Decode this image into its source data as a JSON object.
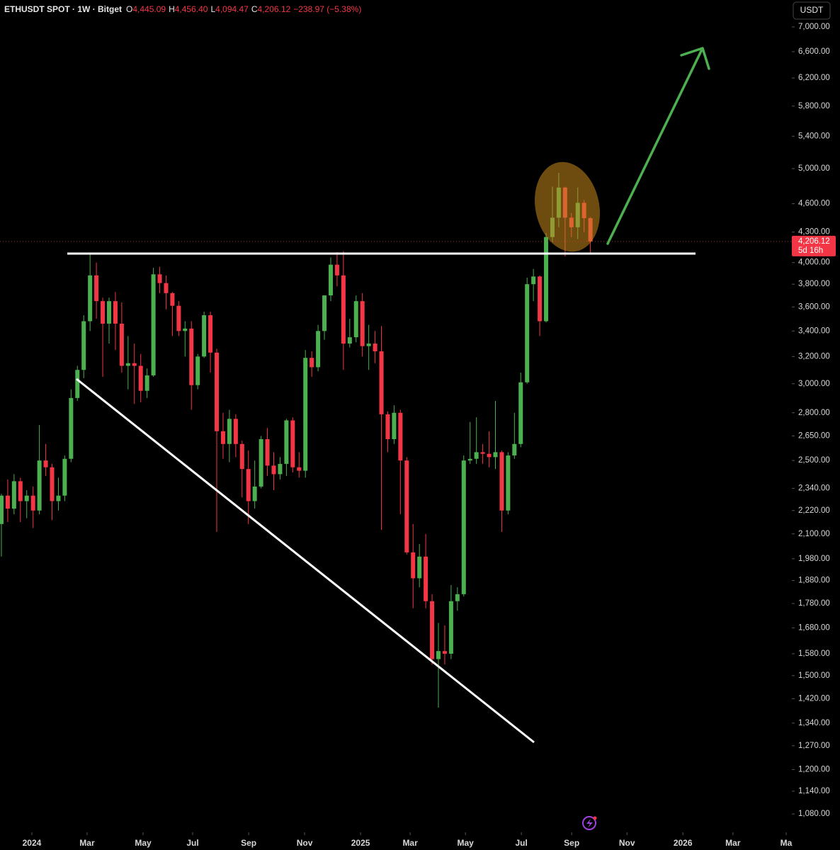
{
  "chart_data": {
    "type": "candlestick",
    "header": {
      "symbol": "ETHUSDT SPOT · 1W · Bitget",
      "ohlc": [
        {
          "prefix": "O",
          "label": "4,445.09"
        },
        {
          "prefix": "H",
          "label": "4,456.40"
        },
        {
          "prefix": "L",
          "label": "4,094.47"
        },
        {
          "prefix": "C",
          "label": "4,206.12"
        }
      ],
      "change": "−238.97 (−5.38%)"
    },
    "currency": "USDT",
    "last_price_label": "4,206.12",
    "countdown": "5d 16h",
    "up_color": "#4caf50",
    "down_color": "#f23645",
    "log_scale": true,
    "grid": false,
    "open": [
      2150,
      2300,
      2230,
      2380,
      2270,
      2300,
      2220,
      2500,
      2460,
      2270,
      2300,
      2510,
      2900,
      3100,
      3480,
      3880,
      3650,
      3460,
      3650,
      3460,
      3130,
      3150,
      3130,
      2950,
      3060,
      3890,
      3810,
      3720,
      3610,
      3400,
      3420,
      2990,
      3200,
      3530,
      3230,
      2680,
      2600,
      2760,
      2600,
      2450,
      2270,
      2350,
      2630,
      2470,
      2420,
      2480,
      2750,
      2460,
      2440,
      3190,
      3120,
      3400,
      3700,
      3980,
      3880,
      3300,
      3350,
      3650,
      3280,
      3300,
      3240,
      2790,
      2630,
      2800,
      2500,
      2010,
      1890,
      1990,
      1790,
      1560,
      1590,
      1580,
      1790,
      1820,
      2500,
      2510,
      2550,
      2540,
      2520,
      2550,
      2220,
      2530,
      2600,
      3010,
      3800,
      3870,
      3480,
      4250,
      4450,
      4780,
      4450,
      4350,
      4610,
      4445.09
    ],
    "high": [
      2310,
      2390,
      2420,
      2400,
      2330,
      2350,
      2720,
      2600,
      2480,
      2400,
      2530,
      2960,
      3130,
      3530,
      4090,
      4000,
      3680,
      3680,
      3730,
      3640,
      3360,
      3300,
      3220,
      3110,
      3950,
      3960,
      3880,
      3730,
      3650,
      3480,
      3480,
      3220,
      3560,
      3560,
      3260,
      2800,
      2820,
      2790,
      2620,
      2560,
      2500,
      2650,
      2700,
      2550,
      2520,
      2760,
      2770,
      2550,
      3250,
      3240,
      3450,
      3700,
      4050,
      4100,
      4110,
      3500,
      3700,
      3720,
      3450,
      3400,
      3440,
      2810,
      2850,
      2820,
      2520,
      2150,
      2050,
      2100,
      1820,
      1700,
      1690,
      1860,
      1850,
      2530,
      2740,
      2770,
      2600,
      2680,
      2880,
      2560,
      2550,
      2800,
      3080,
      3860,
      3940,
      3880,
      4290,
      4790,
      4950,
      4790,
      4500,
      4780,
      4640,
      4456.4
    ],
    "low": [
      1990,
      2160,
      2200,
      2160,
      2180,
      2130,
      2200,
      2410,
      2170,
      2220,
      2270,
      2490,
      2880,
      3040,
      3400,
      3500,
      3050,
      3300,
      3250,
      3080,
      2960,
      2860,
      2870,
      2900,
      3050,
      3720,
      3580,
      3360,
      3360,
      3200,
      2820,
      2960,
      3190,
      3080,
      2110,
      2510,
      2490,
      2520,
      2290,
      2150,
      2230,
      2340,
      2410,
      2330,
      2390,
      2410,
      2430,
      2400,
      2400,
      3050,
      3090,
      3330,
      3650,
      3780,
      3100,
      3270,
      3310,
      3200,
      3100,
      3150,
      2120,
      2550,
      2600,
      2200,
      2000,
      1760,
      1850,
      1760,
      1540,
      1390,
      1540,
      1560,
      1750,
      1810,
      2480,
      2480,
      2480,
      2460,
      2450,
      2110,
      2200,
      2510,
      2580,
      3000,
      3650,
      3360,
      3470,
      4200,
      4350,
      4060,
      4250,
      4230,
      4300,
      4094.47
    ],
    "close": [
      2300,
      2230,
      2380,
      2270,
      2300,
      2220,
      2500,
      2460,
      2270,
      2300,
      2510,
      2900,
      3100,
      3480,
      3880,
      3650,
      3460,
      3650,
      3460,
      3130,
      3150,
      3130,
      2950,
      3060,
      3890,
      3810,
      3720,
      3610,
      3400,
      3420,
      2990,
      3200,
      3530,
      3230,
      2680,
      2600,
      2760,
      2600,
      2450,
      2270,
      2350,
      2630,
      2470,
      2420,
      2480,
      2750,
      2460,
      2440,
      3190,
      3120,
      3400,
      3700,
      3980,
      3880,
      3300,
      3350,
      3650,
      3280,
      3300,
      3240,
      2790,
      2630,
      2800,
      2500,
      2010,
      1890,
      1990,
      1790,
      1560,
      1590,
      1580,
      1790,
      1820,
      2500,
      2510,
      2550,
      2540,
      2520,
      2550,
      2220,
      2530,
      2600,
      3010,
      3800,
      3870,
      3480,
      4250,
      4450,
      4780,
      4450,
      4350,
      4610,
      4445.09,
      4206.12
    ],
    "xlim": [
      -0.22,
      124.8
    ],
    "xticks": [
      {
        "value": 4.81,
        "label": "2024"
      },
      {
        "value": 13.53,
        "label": "Mar"
      },
      {
        "value": 22.37,
        "label": "May"
      },
      {
        "value": 30.2,
        "label": "Jul"
      },
      {
        "value": 39.04,
        "label": "Sep"
      },
      {
        "value": 47.87,
        "label": "Nov"
      },
      {
        "value": 56.71,
        "label": "2025"
      },
      {
        "value": 64.54,
        "label": "Mar"
      },
      {
        "value": 73.27,
        "label": "May"
      },
      {
        "value": 82.1,
        "label": "Jul"
      },
      {
        "value": 90.04,
        "label": "Sep"
      },
      {
        "value": 98.77,
        "label": "Nov"
      },
      {
        "value": 107.6,
        "label": "2026"
      },
      {
        "value": 115.5,
        "label": "Mar"
      },
      {
        "value": 123.9,
        "label": "Ma"
      }
    ],
    "ylim": [
      1034,
      7462
    ],
    "yticks": [
      {
        "value": 7000,
        "label": "7,000.00"
      },
      {
        "value": 6600,
        "label": "6,600.00"
      },
      {
        "value": 6200,
        "label": "6,200.00"
      },
      {
        "value": 5800,
        "label": "5,800.00"
      },
      {
        "value": 5400,
        "label": "5,400.00"
      },
      {
        "value": 5000,
        "label": "5,000.00"
      },
      {
        "value": 4600,
        "label": "4,600.00"
      },
      {
        "value": 4300,
        "label": "4,300.00"
      },
      {
        "value": 4000,
        "label": "4,000.00"
      },
      {
        "value": 3800,
        "label": "3,800.00"
      },
      {
        "value": 3600,
        "label": "3,600.00"
      },
      {
        "value": 3400,
        "label": "3,400.00"
      },
      {
        "value": 3200,
        "label": "3,200.00"
      },
      {
        "value": 3000,
        "label": "3,000.00"
      },
      {
        "value": 2800,
        "label": "2,800.00"
      },
      {
        "value": 2650,
        "label": "2,650.00"
      },
      {
        "value": 2500,
        "label": "2,500.00"
      },
      {
        "value": 2340,
        "label": "2,340.00"
      },
      {
        "value": 2220,
        "label": "2,220.00"
      },
      {
        "value": 2100,
        "label": "2,100.00"
      },
      {
        "value": 1980,
        "label": "1,980.00"
      },
      {
        "value": 1880,
        "label": "1,880.00"
      },
      {
        "value": 1780,
        "label": "1,780.00"
      },
      {
        "value": 1680,
        "label": "1,680.00"
      },
      {
        "value": 1580,
        "label": "1,580.00"
      },
      {
        "value": 1500,
        "label": "1,500.00"
      },
      {
        "value": 1420,
        "label": "1,420.00"
      },
      {
        "value": 1340,
        "label": "1,340.00"
      },
      {
        "value": 1270,
        "label": "1,270.00"
      },
      {
        "value": 1200,
        "label": "1,200.00"
      },
      {
        "value": 1140,
        "label": "1,140.00"
      },
      {
        "value": 1080,
        "label": "1,080.00"
      }
    ]
  }
}
